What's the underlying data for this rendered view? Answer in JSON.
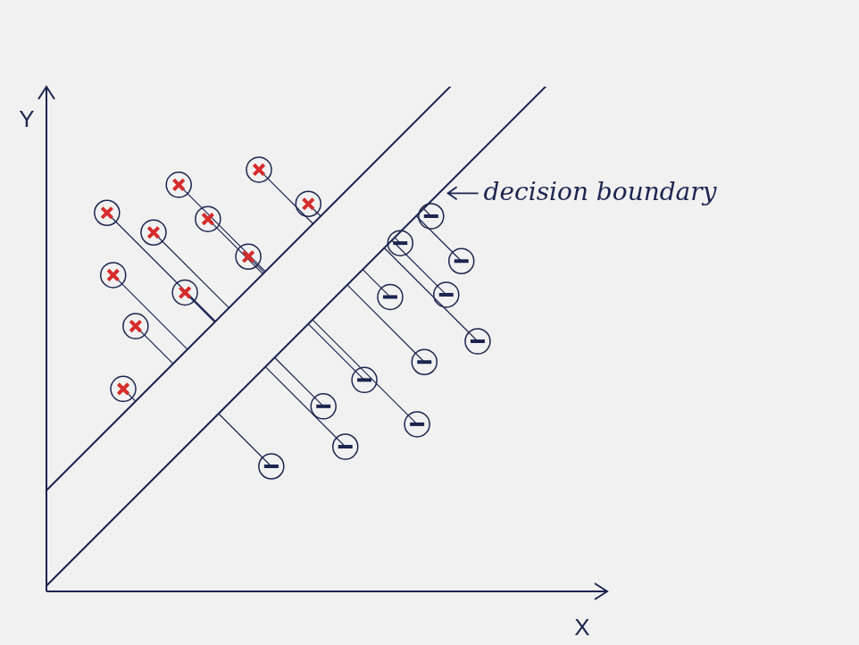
{
  "chart_data": {
    "type": "scatter",
    "x_label": "X",
    "y_label": "Y",
    "annotation": "decision boundary",
    "xlim": [
      0,
      10
    ],
    "ylim": [
      0,
      9
    ],
    "tick_labels": false,
    "grid": false,
    "series": [
      {
        "color": "#d62c2c",
        "marker": "x",
        "x": [
          1.08,
          2.36,
          3.79,
          4.67,
          1.91,
          2.88,
          3.6,
          1.19,
          2.47,
          1.59,
          1.37
        ],
        "values": [
          6.75,
          7.25,
          7.52,
          6.91,
          6.4,
          6.64,
          5.97,
          5.64,
          5.33,
          4.73,
          3.61
        ]
      },
      {
        "color": "#1c2550",
        "marker": "dash",
        "x": [
          6.86,
          6.31,
          7.4,
          7.13,
          6.13,
          7.69,
          6.74,
          5.67,
          4.94,
          6.61,
          5.33,
          4.01
        ],
        "values": [
          6.69,
          6.21,
          5.89,
          5.29,
          5.25,
          4.46,
          4.09,
          3.77,
          3.3,
          2.98,
          2.58,
          2.23
        ]
      }
    ],
    "boundary_lines": [
      {
        "slope": 1,
        "intercept": 1.8
      },
      {
        "slope": 1,
        "intercept": 0.1
      }
    ]
  }
}
